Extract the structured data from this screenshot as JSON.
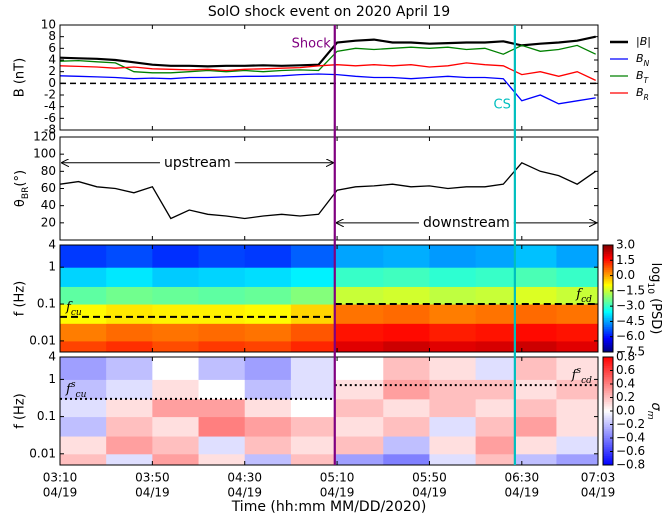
{
  "chart_data": {
    "title": "SolO shock event on 2020 April 19",
    "xlabel": "Time (hh:mm MM/DD/2020)",
    "xlim": [
      190,
      423
    ],
    "xticks": [
      {
        "value": 190,
        "label": "03:10",
        "date": "04/19"
      },
      {
        "value": 230,
        "label": "03:50",
        "date": "04/19"
      },
      {
        "value": 270,
        "label": "04:30",
        "date": "04/19"
      },
      {
        "value": 310,
        "label": "05:10",
        "date": "04/19"
      },
      {
        "value": 350,
        "label": "05:50",
        "date": "04/19"
      },
      {
        "value": 390,
        "label": "06:30",
        "date": "04/19"
      },
      {
        "value": 423,
        "label": "07:03",
        "date": "04/19"
      }
    ],
    "events": [
      {
        "label": "Shock",
        "x": 309,
        "color": "#800080"
      },
      {
        "label": "CS",
        "x": 387,
        "color": "#00bfbf"
      }
    ],
    "panels": [
      {
        "type": "line",
        "ylabel": "B (nT)",
        "ylim": [
          -8,
          10
        ],
        "yticks": [
          10,
          8,
          6,
          4,
          2,
          0,
          -2,
          -4,
          -6,
          -8
        ],
        "hline": 0,
        "x": [
          190,
          198,
          206,
          214,
          222,
          230,
          238,
          246,
          254,
          262,
          270,
          278,
          286,
          294,
          302,
          310,
          318,
          326,
          334,
          342,
          350,
          358,
          366,
          374,
          382,
          390,
          398,
          406,
          414,
          422
        ],
        "series": [
          {
            "name": "|B|",
            "color": "#000000",
            "values": [
              4.4,
              4.3,
              4.2,
              4.0,
              3.6,
              3.2,
              3.0,
              3.0,
              2.9,
              3.0,
              3.0,
              3.1,
              3.0,
              3.1,
              3.2,
              7.0,
              7.3,
              7.5,
              7.0,
              7.0,
              6.8,
              6.9,
              7.0,
              7.0,
              7.2,
              6.5,
              6.8,
              7.0,
              7.3,
              8.0
            ]
          },
          {
            "name": "B_N",
            "color": "#0000ff",
            "values": [
              1.3,
              1.2,
              1.1,
              1.0,
              0.8,
              0.9,
              0.8,
              1.0,
              1.0,
              1.1,
              1.2,
              1.2,
              1.3,
              1.5,
              1.6,
              1.5,
              1.2,
              1.0,
              1.0,
              0.8,
              1.0,
              1.2,
              1.0,
              1.0,
              0.8,
              -3.0,
              -2.0,
              -3.5,
              -3.0,
              -2.5
            ]
          },
          {
            "name": "B_T",
            "color": "#008000",
            "values": [
              3.8,
              3.9,
              3.7,
              3.5,
              2.0,
              1.8,
              1.8,
              2.0,
              2.2,
              2.0,
              2.2,
              2.0,
              2.2,
              2.3,
              2.2,
              5.5,
              6.0,
              5.8,
              6.0,
              6.2,
              6.0,
              6.2,
              5.8,
              6.0,
              5.0,
              6.5,
              5.5,
              5.8,
              6.5,
              5.0
            ]
          },
          {
            "name": "B_R",
            "color": "#ff0000",
            "values": [
              3.0,
              2.9,
              2.8,
              2.6,
              2.8,
              2.5,
              2.4,
              2.3,
              2.4,
              2.2,
              2.4,
              2.5,
              2.6,
              2.7,
              3.0,
              3.2,
              3.0,
              3.2,
              3.0,
              3.2,
              2.8,
              3.0,
              3.5,
              3.2,
              3.0,
              1.5,
              2.0,
              1.2,
              2.0,
              0.5
            ]
          }
        ]
      },
      {
        "type": "line",
        "ylabel": "θ_BR(°)",
        "ylim": [
          0,
          120
        ],
        "yticks": [
          20,
          40,
          60,
          80,
          100,
          120
        ],
        "color": "#000000",
        "x": [
          190,
          198,
          206,
          214,
          222,
          230,
          238,
          246,
          254,
          262,
          270,
          278,
          286,
          294,
          302,
          310,
          318,
          326,
          334,
          342,
          350,
          358,
          366,
          374,
          382,
          390,
          398,
          406,
          414,
          422
        ],
        "values": [
          65,
          68,
          62,
          60,
          55,
          62,
          25,
          35,
          30,
          28,
          25,
          28,
          30,
          28,
          30,
          58,
          62,
          63,
          65,
          62,
          63,
          60,
          62,
          62,
          65,
          90,
          80,
          75,
          65,
          80
        ],
        "annotations": [
          {
            "text": "upstream",
            "x": [
              190,
              309
            ],
            "y": 90
          },
          {
            "text": "downstream",
            "x": [
              309,
              423
            ],
            "y": 20
          }
        ]
      },
      {
        "type": "heatmap",
        "ylabel": "f (Hz)",
        "ylog": true,
        "ylim": [
          0.005,
          4
        ],
        "yticks": [
          0.01,
          0.1,
          1,
          4
        ],
        "colormap": "jet",
        "clabel": "log_10 (PSD)",
        "clim": [
          -7.5,
          3.0
        ],
        "cticks": [
          {
            "value": 3.0,
            "label": "3.0"
          },
          {
            "value": 1.5,
            "label": "1.5"
          },
          {
            "value": 0.0,
            "label": "0.0"
          },
          {
            "value": -1.5,
            "label": "−1.5"
          },
          {
            "value": -3.0,
            "label": "−3.0"
          },
          {
            "value": -4.5,
            "label": "−4.5"
          },
          {
            "value": -6.0,
            "label": "−6.0"
          },
          {
            "value": -7.5,
            "label": "−7.5"
          }
        ],
        "x_edges": [
          190,
          210,
          230,
          250,
          270,
          290,
          309,
          330,
          350,
          370,
          387,
          405,
          423
        ],
        "f_edges": [
          0.005,
          0.01,
          0.03,
          0.1,
          0.3,
          1,
          4
        ],
        "z": [
          [
            1.0,
            1.2,
            0.9,
            1.1,
            1.0,
            1.3,
            2.0,
            2.2,
            2.0,
            2.1,
            2.2,
            2.0
          ],
          [
            0.4,
            0.6,
            0.5,
            0.6,
            0.5,
            0.8,
            1.5,
            1.6,
            1.4,
            1.5,
            1.6,
            1.5
          ],
          [
            -0.9,
            -0.7,
            -0.8,
            -0.8,
            -0.9,
            -0.5,
            0.5,
            0.6,
            0.4,
            0.5,
            0.6,
            0.5
          ],
          [
            -2.6,
            -2.4,
            -2.5,
            -2.6,
            -2.5,
            -2.2,
            -1.5,
            -1.4,
            -1.6,
            -1.5,
            -1.3,
            -1.5
          ],
          [
            -4.0,
            -3.8,
            -4.1,
            -4.0,
            -3.9,
            -3.7,
            -3.0,
            -2.9,
            -3.1,
            -3.0,
            -2.8,
            -3.0
          ],
          [
            -5.6,
            -5.4,
            -5.7,
            -5.5,
            -5.6,
            -5.2,
            -4.5,
            -4.4,
            -4.6,
            -4.5,
            -4.2,
            -4.5
          ]
        ],
        "thresholds": [
          {
            "x": [
              190,
              309
            ],
            "y": 0.045,
            "label": "f_cu"
          },
          {
            "x": [
              309,
              423
            ],
            "y": 0.1,
            "label": "f_cd"
          }
        ]
      },
      {
        "type": "heatmap",
        "ylabel": "f (Hz)",
        "ylog": true,
        "ylim": [
          0.005,
          4
        ],
        "yticks": [
          0.01,
          0.1,
          1,
          4
        ],
        "colormap": "bwr",
        "clabel": "σ_m",
        "clim": [
          -0.8,
          0.8
        ],
        "cticks": [
          0.8,
          0.6,
          0.4,
          0.2,
          {
            "value": 0.0,
            "label": "0.0"
          },
          {
            "value": -0.2,
            "label": "−0.2"
          },
          {
            "value": -0.4,
            "label": "−0.4"
          },
          {
            "value": -0.6,
            "label": "−0.6"
          },
          {
            "value": -0.8,
            "label": "−0.8"
          }
        ],
        "x_edges": [
          190,
          210,
          230,
          250,
          270,
          290,
          309,
          330,
          350,
          370,
          387,
          405,
          423
        ],
        "f_edges": [
          0.005,
          0.01,
          0.03,
          0.1,
          0.3,
          1,
          4
        ],
        "z": [
          [
            0.2,
            -0.1,
            0.3,
            0.1,
            -0.2,
            0.2,
            -0.3,
            -0.4,
            -0.1,
            0.2,
            -0.2,
            -0.3
          ],
          [
            0.1,
            0.3,
            0.2,
            -0.1,
            0.2,
            0.1,
            0.2,
            -0.2,
            0.1,
            0.3,
            0.1,
            -0.1
          ],
          [
            -0.2,
            0.2,
            0.1,
            0.4,
            0.3,
            0.2,
            0.1,
            0.2,
            -0.1,
            0.2,
            0.3,
            0.1
          ],
          [
            -0.1,
            0.1,
            0.3,
            0.3,
            0.1,
            0.0,
            0.2,
            0.1,
            0.2,
            0.1,
            0.2,
            0.1
          ],
          [
            -0.2,
            -0.1,
            0.1,
            0.0,
            -0.2,
            -0.1,
            0.1,
            0.3,
            0.2,
            0.2,
            0.1,
            0.2
          ],
          [
            -0.3,
            -0.2,
            0.0,
            -0.2,
            -0.3,
            -0.1,
            0.0,
            0.2,
            0.1,
            -0.1,
            0.2,
            0.1
          ]
        ],
        "thresholds": [
          {
            "x": [
              190,
              309
            ],
            "y": 0.3,
            "label": "f^s_cu"
          },
          {
            "x": [
              309,
              423
            ],
            "y": 0.7,
            "label": "f^s_cd"
          }
        ]
      }
    ]
  }
}
